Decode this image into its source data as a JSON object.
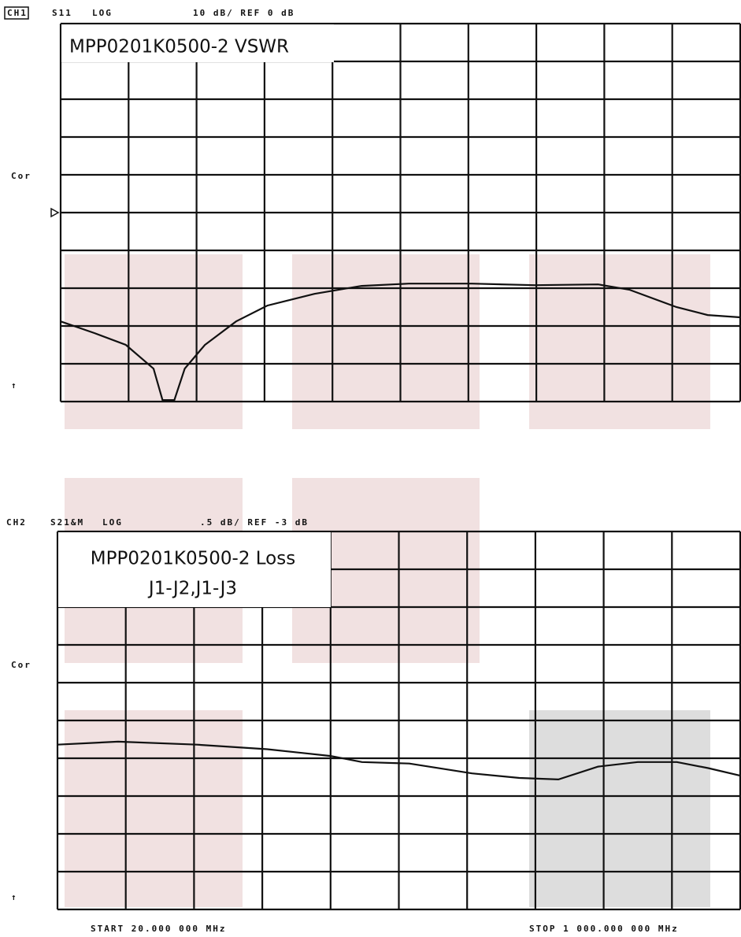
{
  "chart_data": [
    {
      "type": "line",
      "channel": "CH1",
      "parameter": "S11",
      "format": "LOG",
      "scale_ref": "10 dB/ REF 0 dB",
      "title": "MPP0201K0500-2 VSWR",
      "side_labels": [
        "Cor",
        "↑"
      ],
      "x": [
        20,
        69,
        114,
        154,
        167,
        184,
        199,
        228,
        273,
        318,
        386,
        454,
        522,
        613,
        704,
        795,
        840,
        908,
        953,
        1000
      ],
      "values": [
        -28.8,
        -31.9,
        -35,
        -41.3,
        -49.6,
        -49.6,
        -41.3,
        -35,
        -28.8,
        -24.6,
        -21.5,
        -19.4,
        -18.8,
        -18.8,
        -19.2,
        -19,
        -20.4,
        -25,
        -27.1,
        -27.7
      ],
      "color": "#111111",
      "xlim": [
        20,
        1000
      ],
      "xticks": [
        20,
        118,
        216,
        314,
        412,
        510,
        608,
        706,
        804,
        902,
        1000
      ],
      "ylim": [
        -50,
        50
      ],
      "yticks": [
        -50,
        -40,
        -30,
        -20,
        -10,
        0,
        10,
        20,
        30,
        40,
        50
      ],
      "grid": true
    },
    {
      "type": "line",
      "channel": "CH2",
      "parameter": "S21&M",
      "format": "LOG",
      "scale_ref": ".5 dB/ REF -3 dB",
      "title": "MPP0201K0500-2 Loss",
      "subtitle": "J1-J2,J1-J3",
      "side_labels": [
        "Cor",
        "↑"
      ],
      "start_label": "START 20.000 000 MHz",
      "stop_label": "STOP 1 000.000 000 MHz",
      "x": [
        20,
        107,
        220,
        321,
        412,
        457,
        525,
        615,
        683,
        739,
        796,
        853,
        909,
        954,
        1000
      ],
      "values": [
        -3.32,
        -3.28,
        -3.32,
        -3.38,
        -3.47,
        -3.55,
        -3.57,
        -3.7,
        -3.76,
        -3.78,
        -3.61,
        -3.55,
        -3.55,
        -3.63,
        -3.73
      ],
      "color": "#111111",
      "xlim": [
        20,
        1000
      ],
      "xticks": [
        20,
        118,
        216,
        314,
        412,
        510,
        608,
        706,
        804,
        902,
        1000
      ],
      "ylim": [
        -5.5,
        -0.5
      ],
      "yticks": [
        -5.5,
        -5,
        -4.5,
        -4,
        -3.5,
        -3,
        -2.5,
        -2,
        -1.5,
        -1,
        -0.5
      ],
      "grid": true
    }
  ]
}
